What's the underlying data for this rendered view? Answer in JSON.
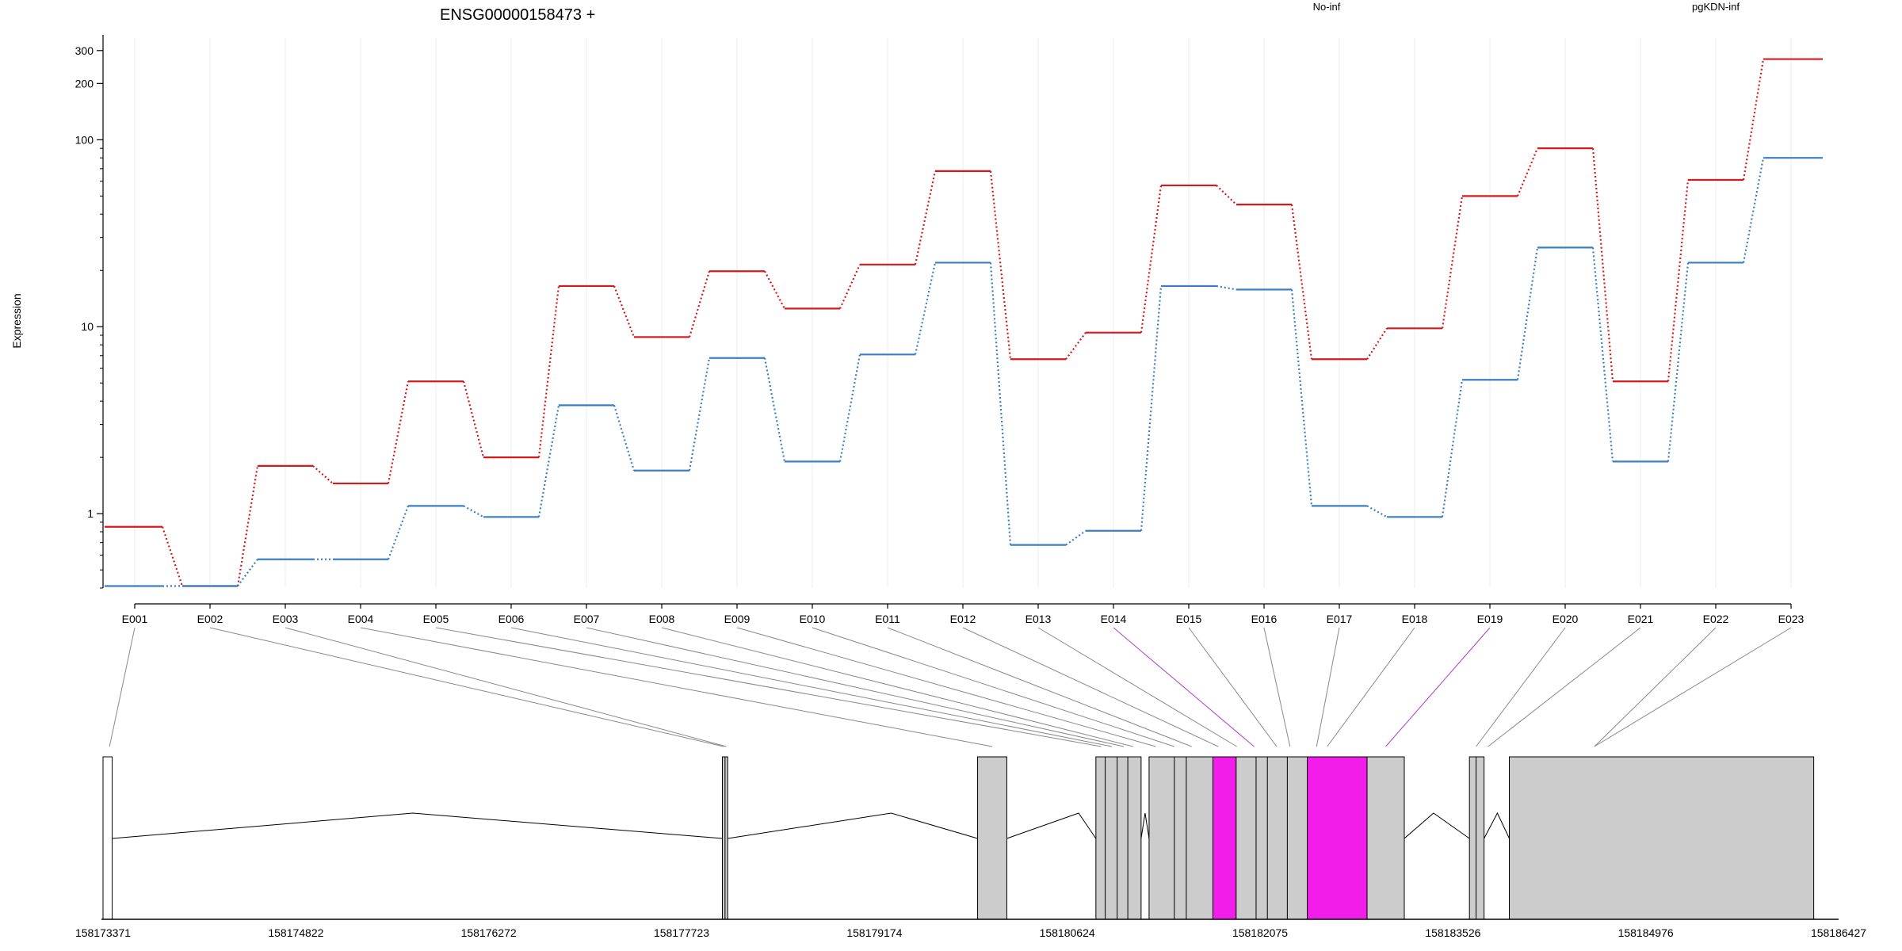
{
  "chart_data": {
    "type": "line",
    "title": "ENSG00000158473 +",
    "ylabel": "Expression",
    "yscale": "log",
    "ylim": [
      0.4,
      350
    ],
    "yticks": [
      1,
      10,
      100,
      200,
      300
    ],
    "ytick_labels": [
      "1",
      "10",
      "100",
      "200",
      "300"
    ],
    "grid": "vertical",
    "legend_placement": "top",
    "categories": [
      "E001",
      "E002",
      "E003",
      "E004",
      "E005",
      "E006",
      "E007",
      "E008",
      "E009",
      "E010",
      "E011",
      "E012",
      "E013",
      "E014",
      "E015",
      "E016",
      "E017",
      "E018",
      "E019",
      "E020",
      "E021",
      "E022",
      "E023"
    ],
    "series": [
      {
        "name": "No-inf",
        "color": "#d7191c",
        "values": [
          0.85,
          0.41,
          1.8,
          1.45,
          5.1,
          2.0,
          16.5,
          8.8,
          19.8,
          12.5,
          21.5,
          68,
          6.7,
          9.3,
          57,
          45,
          6.7,
          9.8,
          50,
          90,
          5.1,
          61,
          270
        ]
      },
      {
        "name": "pgKDN-inf",
        "color": "#3a7fc4",
        "values": [
          0.41,
          0.41,
          0.57,
          0.57,
          1.1,
          0.96,
          3.8,
          1.7,
          6.8,
          1.9,
          7.1,
          22,
          0.68,
          0.81,
          16.5,
          15.8,
          1.1,
          0.96,
          5.2,
          26.5,
          1.9,
          22,
          80
        ]
      }
    ],
    "gene_model": {
      "x_axis_ticks": [
        158173371,
        158174822,
        158176272,
        158177723,
        158179174,
        158180624,
        158182075,
        158183526,
        158184976,
        158186427
      ],
      "x_range": [
        158173371,
        158186427
      ],
      "exon_blocks": [
        {
          "start": 158173371,
          "end": 158173440,
          "fill": "#ffffff"
        },
        {
          "start": 158178030,
          "end": 158178070,
          "fill": "#cccccc"
        },
        {
          "start": 158179950,
          "end": 158180170,
          "fill": "#cccccc"
        },
        {
          "start": 158180840,
          "end": 158181180,
          "fill": "#cccccc"
        },
        {
          "start": 158181240,
          "end": 158181720,
          "fill": "#cccccc"
        },
        {
          "start": 158181720,
          "end": 158181895,
          "fill": "#f21de8"
        },
        {
          "start": 158181895,
          "end": 158182430,
          "fill": "#cccccc"
        },
        {
          "start": 158182430,
          "end": 158182880,
          "fill": "#f21de8"
        },
        {
          "start": 158182880,
          "end": 158183160,
          "fill": "#cccccc"
        },
        {
          "start": 158183650,
          "end": 158183760,
          "fill": "#cccccc"
        },
        {
          "start": 158183950,
          "end": 158186240,
          "fill": "#cccccc"
        }
      ],
      "inner_dividers": [
        158178050,
        158180910,
        158181000,
        158181080,
        158181430,
        158181520,
        158182045,
        158182130,
        158182280,
        158183700
      ],
      "intron_peaks": [
        158175700,
        158179300,
        158180710,
        158181210,
        158183380,
        158183860
      ],
      "exon_positions": [
        158173420,
        158178040,
        158178060,
        158180060,
        158180880,
        158180960,
        158181050,
        158181120,
        158181290,
        158181430,
        158181560,
        158181760,
        158181900,
        158182030,
        158182200,
        158182300,
        158182500,
        158182580,
        158183020,
        158183700,
        158183790,
        158184590,
        158184590
      ],
      "highlighted_exons": [
        "E014",
        "E019"
      ]
    }
  }
}
